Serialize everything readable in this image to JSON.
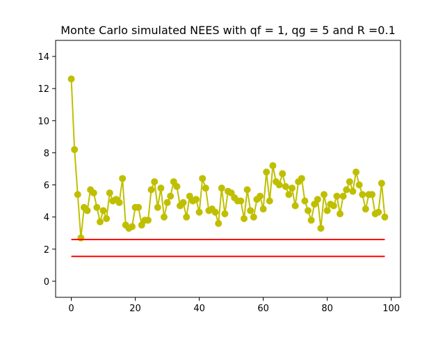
{
  "chart_data": {
    "type": "line",
    "title": "Monte Carlo simulated NEES with qf = 1, qg = 5 and R =0.1",
    "xlabel": "",
    "ylabel": "",
    "xlim": [
      -4.9,
      102.9
    ],
    "ylim": [
      -1,
      15
    ],
    "x_ticks": [
      0,
      20,
      40,
      60,
      80,
      100
    ],
    "y_ticks": [
      0,
      2,
      4,
      6,
      8,
      10,
      12,
      14
    ],
    "grid": false,
    "legend": "none",
    "series": [
      {
        "color": "#bfbf00",
        "marker": "circle",
        "x": [
          0,
          1,
          2,
          3,
          4,
          5,
          6,
          7,
          8,
          9,
          10,
          11,
          12,
          13,
          14,
          15,
          16,
          17,
          18,
          19,
          20,
          21,
          22,
          23,
          24,
          25,
          26,
          27,
          28,
          29,
          30,
          31,
          32,
          33,
          34,
          35,
          36,
          37,
          38,
          39,
          40,
          41,
          42,
          43,
          44,
          45,
          46,
          47,
          48,
          49,
          50,
          51,
          52,
          53,
          54,
          55,
          56,
          57,
          58,
          59,
          60,
          61,
          62,
          63,
          64,
          65,
          66,
          67,
          68,
          69,
          70,
          71,
          72,
          73,
          74,
          75,
          76,
          77,
          78,
          79,
          80,
          81,
          82,
          83,
          84,
          85,
          86,
          87,
          88,
          89,
          90,
          91,
          92,
          93,
          94,
          95,
          96,
          97,
          98
        ],
        "values": [
          12.6,
          8.2,
          5.4,
          2.7,
          4.6,
          4.4,
          5.7,
          5.5,
          4.6,
          3.7,
          4.4,
          3.9,
          5.5,
          5.0,
          5.1,
          4.9,
          6.4,
          3.5,
          3.3,
          3.4,
          4.6,
          4.6,
          3.5,
          3.8,
          3.8,
          5.7,
          6.2,
          4.6,
          5.8,
          4.0,
          4.9,
          5.3,
          6.2,
          5.9,
          4.7,
          4.9,
          4.0,
          5.3,
          5.0,
          5.1,
          4.3,
          6.4,
          5.8,
          4.4,
          4.5,
          4.3,
          3.6,
          5.8,
          4.2,
          5.6,
          5.5,
          5.2,
          5.0,
          5.0,
          3.9,
          5.7,
          4.4,
          4.0,
          5.1,
          5.3,
          4.5,
          6.8,
          5.0,
          7.2,
          6.2,
          6.0,
          6.7,
          5.9,
          5.4,
          5.8,
          4.7,
          6.2,
          6.4,
          5.0,
          4.4,
          3.8,
          4.8,
          5.1,
          3.3,
          5.4,
          4.4,
          4.8,
          4.7,
          5.3,
          4.2,
          5.3,
          5.7,
          6.2,
          5.6,
          6.8,
          6.0,
          5.4,
          4.5,
          5.4,
          5.4,
          4.2,
          4.3,
          6.1,
          4.0
        ]
      },
      {
        "color": "#ff0000",
        "marker": "none",
        "x": [
          0,
          98
        ],
        "values": [
          2.6,
          2.6
        ]
      },
      {
        "color": "#ff0000",
        "marker": "none",
        "x": [
          0,
          98
        ],
        "values": [
          1.55,
          1.55
        ]
      }
    ]
  }
}
